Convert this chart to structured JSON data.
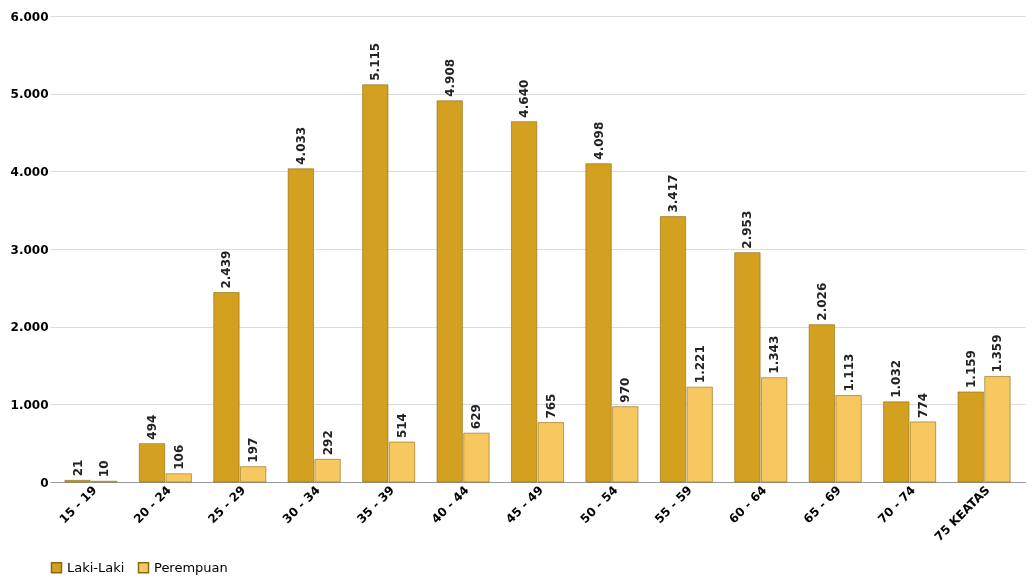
{
  "chart_data": {
    "type": "bar",
    "categories": [
      "15 - 19",
      "20 - 24",
      "25 - 29",
      "30 - 34",
      "35 - 39",
      "40 - 44",
      "45 - 49",
      "50 - 54",
      "55 - 59",
      "60 - 64",
      "65 - 69",
      "70 - 74",
      "75 KEATAS"
    ],
    "series": [
      {
        "name": "Laki-Laki",
        "color": "#d4a020",
        "values": [
          21,
          494,
          2439,
          4033,
          5115,
          4908,
          4640,
          4098,
          3417,
          2953,
          2026,
          1032,
          1159
        ],
        "value_labels": [
          "21",
          "494",
          "2.439",
          "4.033",
          "5.115",
          "4.908",
          "4.640",
          "4.098",
          "3.417",
          "2.953",
          "2.026",
          "1.032",
          "1.159"
        ]
      },
      {
        "name": "Perempuan",
        "color": "#f8c860",
        "values": [
          10,
          106,
          197,
          292,
          514,
          629,
          765,
          970,
          1221,
          1343,
          1113,
          774,
          1359
        ],
        "value_labels": [
          "10",
          "106",
          "197",
          "292",
          "514",
          "629",
          "765",
          "970",
          "1.221",
          "1.343",
          "1.113",
          "774",
          "1.359"
        ]
      }
    ],
    "ylim": [
      0,
      6000
    ],
    "yticks": [
      {
        "value": 0,
        "label": "0"
      },
      {
        "value": 1000,
        "label": "1.000"
      },
      {
        "value": 2000,
        "label": "2.000"
      },
      {
        "value": 3000,
        "label": "3.000"
      },
      {
        "value": 4000,
        "label": "4.000"
      },
      {
        "value": 5000,
        "label": "5.000"
      },
      {
        "value": 6000,
        "label": "6.000"
      }
    ],
    "grid": "y",
    "legend": "bottom"
  }
}
